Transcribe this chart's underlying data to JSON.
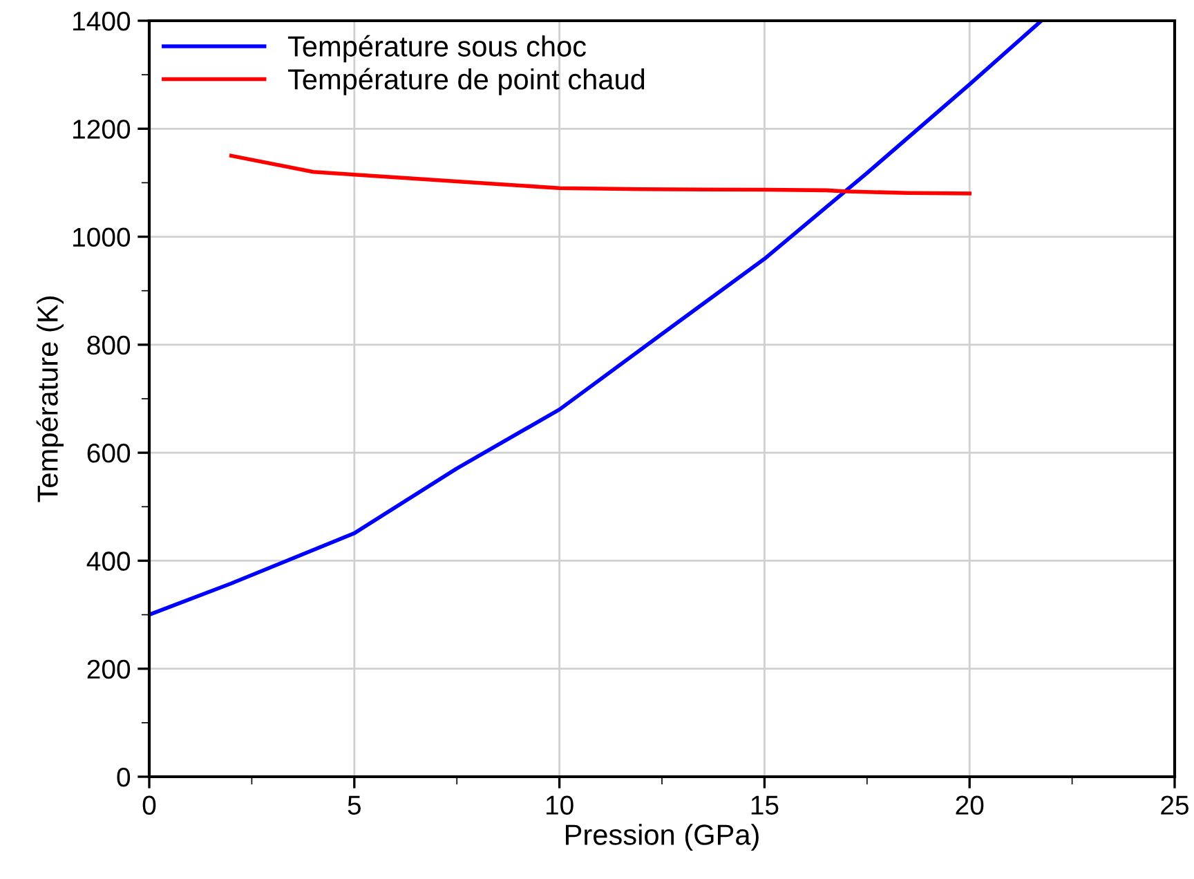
{
  "chart_data": {
    "type": "line",
    "xlabel": "Pression (GPa)",
    "ylabel": "Température (K)",
    "xlim": [
      0,
      25
    ],
    "xticks": [
      0,
      5,
      10,
      15,
      20,
      25
    ],
    "ylim": [
      0,
      1400
    ],
    "yticks": [
      0,
      200,
      400,
      600,
      800,
      1000,
      1200,
      1400
    ],
    "grid": true,
    "legend": "top left",
    "marker": "none",
    "line_style": "solid",
    "series": [
      {
        "name": "Température sous choc",
        "color": "#0000ff",
        "x": [
          0,
          2,
          5,
          7.5,
          10,
          12.5,
          15,
          17.5,
          20,
          21.75
        ],
        "values": [
          300,
          358,
          451,
          571,
          680,
          820,
          959,
          1118,
          1282,
          1400
        ]
      },
      {
        "name": "Température de point chaud",
        "color": "#ff0000",
        "x": [
          2,
          4,
          5,
          8,
          10,
          12,
          15,
          16.5,
          17,
          18.5,
          20
        ],
        "values": [
          1150,
          1120,
          1115,
          1100,
          1090,
          1088,
          1087,
          1086,
          1084,
          1081,
          1080
        ]
      }
    ]
  }
}
